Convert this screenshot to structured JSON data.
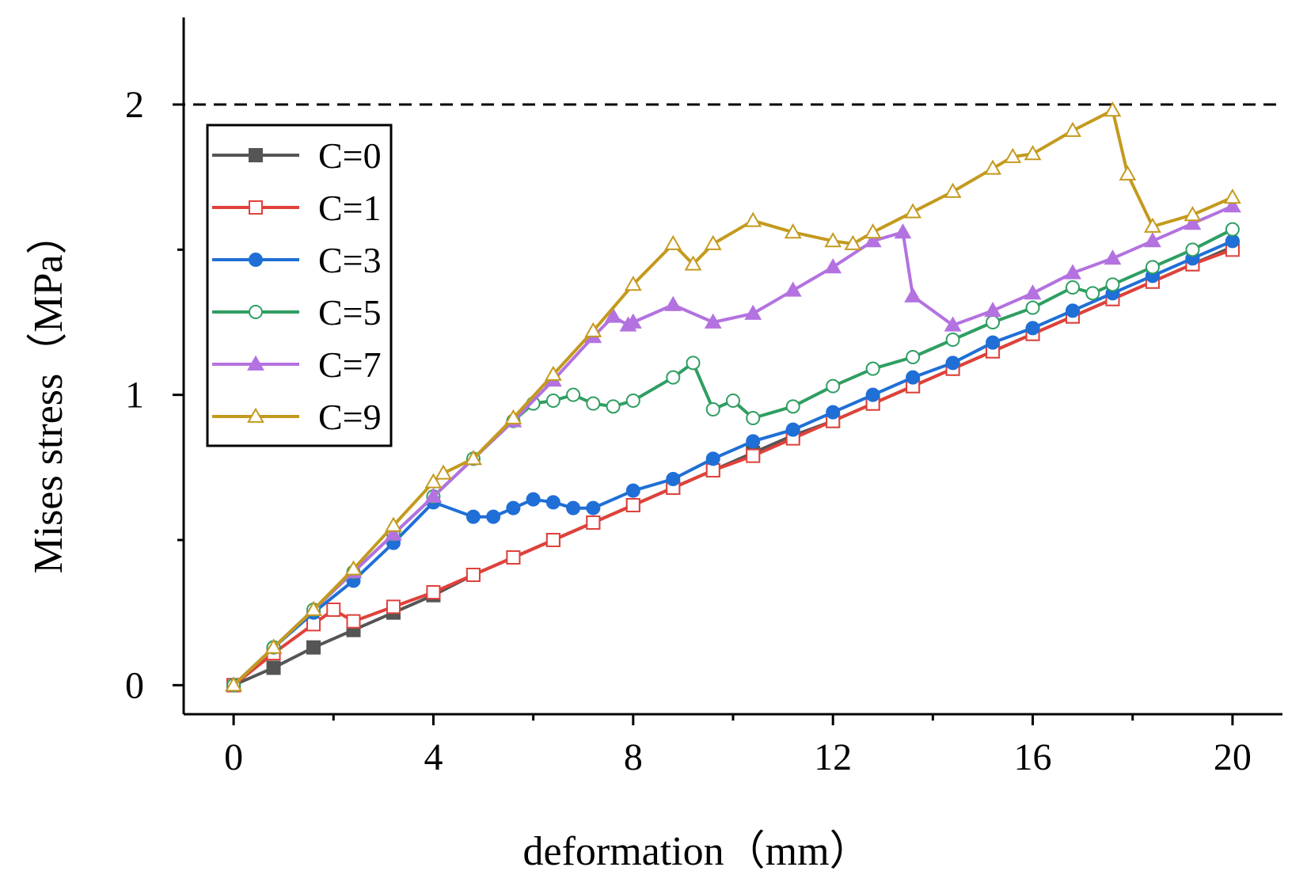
{
  "chart_data": {
    "type": "line",
    "xlabel": "deformation（mm）",
    "ylabel": "Mises stress（MPa）",
    "xlim": [
      -1,
      21
    ],
    "ylim": [
      -0.1,
      2.3
    ],
    "x_ticks": [
      0,
      4,
      8,
      12,
      16,
      20
    ],
    "y_ticks": [
      0,
      1,
      2
    ],
    "x_tick_labels": [
      "0",
      "4",
      "8",
      "12",
      "16",
      "20"
    ],
    "y_tick_labels": [
      "0",
      "1",
      "2"
    ],
    "reference_line": {
      "y": 2,
      "style": "dashed"
    },
    "grid": false,
    "legend_position": "upper-left",
    "series": [
      {
        "name": "C=0",
        "color": "#555555",
        "marker": "square-filled",
        "points": [
          [
            0,
            0
          ],
          [
            0.8,
            0.06
          ],
          [
            1.6,
            0.13
          ],
          [
            2.4,
            0.19
          ],
          [
            3.2,
            0.25
          ],
          [
            4,
            0.31
          ],
          [
            4.8,
            0.38
          ],
          [
            5.6,
            0.44
          ],
          [
            6.4,
            0.5
          ],
          [
            7.2,
            0.56
          ],
          [
            8,
            0.62
          ],
          [
            8.8,
            0.68
          ],
          [
            9.6,
            0.74
          ],
          [
            10.4,
            0.8
          ],
          [
            11.2,
            0.86
          ],
          [
            12,
            0.91
          ],
          [
            12.8,
            0.97
          ],
          [
            13.6,
            1.03
          ],
          [
            14.4,
            1.09
          ],
          [
            15.2,
            1.15
          ],
          [
            16,
            1.21
          ],
          [
            16.8,
            1.27
          ],
          [
            17.6,
            1.33
          ],
          [
            18.4,
            1.39
          ],
          [
            19.2,
            1.45
          ],
          [
            20,
            1.51
          ]
        ]
      },
      {
        "name": "C=1",
        "color": "#e0413a",
        "marker": "square-open",
        "points": [
          [
            0,
            0
          ],
          [
            0.8,
            0.11
          ],
          [
            1.6,
            0.21
          ],
          [
            2,
            0.26
          ],
          [
            2.4,
            0.22
          ],
          [
            3.2,
            0.27
          ],
          [
            4,
            0.32
          ],
          [
            4.8,
            0.38
          ],
          [
            5.6,
            0.44
          ],
          [
            6.4,
            0.5
          ],
          [
            7.2,
            0.56
          ],
          [
            8,
            0.62
          ],
          [
            8.8,
            0.68
          ],
          [
            9.6,
            0.74
          ],
          [
            10.4,
            0.79
          ],
          [
            11.2,
            0.85
          ],
          [
            12,
            0.91
          ],
          [
            12.8,
            0.97
          ],
          [
            13.6,
            1.03
          ],
          [
            14.4,
            1.09
          ],
          [
            15.2,
            1.15
          ],
          [
            16,
            1.21
          ],
          [
            16.8,
            1.27
          ],
          [
            17.6,
            1.33
          ],
          [
            18.4,
            1.39
          ],
          [
            19.2,
            1.45
          ],
          [
            20,
            1.5
          ]
        ]
      },
      {
        "name": "C=3",
        "color": "#1f6fd6",
        "marker": "circle-filled",
        "points": [
          [
            0,
            0
          ],
          [
            0.8,
            0.13
          ],
          [
            1.6,
            0.25
          ],
          [
            2.4,
            0.36
          ],
          [
            3.2,
            0.49
          ],
          [
            4,
            0.63
          ],
          [
            4.8,
            0.58
          ],
          [
            5.2,
            0.58
          ],
          [
            5.6,
            0.61
          ],
          [
            6,
            0.64
          ],
          [
            6.4,
            0.63
          ],
          [
            6.8,
            0.61
          ],
          [
            7.2,
            0.61
          ],
          [
            8,
            0.67
          ],
          [
            8.8,
            0.71
          ],
          [
            9.6,
            0.78
          ],
          [
            10.4,
            0.84
          ],
          [
            11.2,
            0.88
          ],
          [
            12,
            0.94
          ],
          [
            12.8,
            1.0
          ],
          [
            13.6,
            1.06
          ],
          [
            14.4,
            1.11
          ],
          [
            15.2,
            1.18
          ],
          [
            16,
            1.23
          ],
          [
            16.8,
            1.29
          ],
          [
            17.6,
            1.35
          ],
          [
            18.4,
            1.41
          ],
          [
            19.2,
            1.47
          ],
          [
            20,
            1.53
          ]
        ]
      },
      {
        "name": "C=5",
        "color": "#2f9e62",
        "marker": "circle-open",
        "points": [
          [
            0,
            0
          ],
          [
            0.8,
            0.13
          ],
          [
            1.6,
            0.26
          ],
          [
            2.4,
            0.39
          ],
          [
            3.2,
            0.52
          ],
          [
            4,
            0.65
          ],
          [
            4.8,
            0.78
          ],
          [
            5.6,
            0.91
          ],
          [
            6,
            0.97
          ],
          [
            6.4,
            0.98
          ],
          [
            6.8,
            1.0
          ],
          [
            7.2,
            0.97
          ],
          [
            7.6,
            0.96
          ],
          [
            8,
            0.98
          ],
          [
            8.8,
            1.06
          ],
          [
            9.2,
            1.11
          ],
          [
            9.6,
            0.95
          ],
          [
            10,
            0.98
          ],
          [
            10.4,
            0.92
          ],
          [
            11.2,
            0.96
          ],
          [
            12,
            1.03
          ],
          [
            12.8,
            1.09
          ],
          [
            13.6,
            1.13
          ],
          [
            14.4,
            1.19
          ],
          [
            15.2,
            1.25
          ],
          [
            16,
            1.3
          ],
          [
            16.8,
            1.37
          ],
          [
            17.2,
            1.35
          ],
          [
            17.6,
            1.38
          ],
          [
            18.4,
            1.44
          ],
          [
            19.2,
            1.5
          ],
          [
            20,
            1.57
          ]
        ]
      },
      {
        "name": "C=7",
        "color": "#b372e0",
        "marker": "triangle-filled",
        "points": [
          [
            0,
            0
          ],
          [
            0.8,
            0.13
          ],
          [
            1.6,
            0.26
          ],
          [
            2.4,
            0.39
          ],
          [
            3.2,
            0.52
          ],
          [
            4,
            0.65
          ],
          [
            4.8,
            0.78
          ],
          [
            5.6,
            0.91
          ],
          [
            6.4,
            1.05
          ],
          [
            7.2,
            1.2
          ],
          [
            7.6,
            1.27
          ],
          [
            7.9,
            1.24
          ],
          [
            8,
            1.25
          ],
          [
            8.8,
            1.31
          ],
          [
            9.6,
            1.25
          ],
          [
            10.4,
            1.28
          ],
          [
            11.2,
            1.36
          ],
          [
            12,
            1.44
          ],
          [
            12.8,
            1.53
          ],
          [
            13.4,
            1.56
          ],
          [
            13.6,
            1.34
          ],
          [
            14.4,
            1.24
          ],
          [
            15.2,
            1.29
          ],
          [
            16,
            1.35
          ],
          [
            16.8,
            1.42
          ],
          [
            17.6,
            1.47
          ],
          [
            18.4,
            1.53
          ],
          [
            19.2,
            1.59
          ],
          [
            20,
            1.65
          ]
        ]
      },
      {
        "name": "C=9",
        "color": "#c49a1e",
        "marker": "triangle-open",
        "points": [
          [
            0,
            0
          ],
          [
            0.8,
            0.13
          ],
          [
            1.6,
            0.26
          ],
          [
            2.4,
            0.4
          ],
          [
            3.2,
            0.55
          ],
          [
            4,
            0.7
          ],
          [
            4.2,
            0.73
          ],
          [
            4.8,
            0.78
          ],
          [
            5.6,
            0.92
          ],
          [
            6.4,
            1.07
          ],
          [
            7.2,
            1.22
          ],
          [
            8,
            1.38
          ],
          [
            8.8,
            1.52
          ],
          [
            9.2,
            1.45
          ],
          [
            9.6,
            1.52
          ],
          [
            10.4,
            1.6
          ],
          [
            11.2,
            1.56
          ],
          [
            12,
            1.53
          ],
          [
            12.4,
            1.52
          ],
          [
            12.8,
            1.56
          ],
          [
            13.6,
            1.63
          ],
          [
            14.4,
            1.7
          ],
          [
            15.2,
            1.78
          ],
          [
            15.6,
            1.82
          ],
          [
            16,
            1.83
          ],
          [
            16.8,
            1.91
          ],
          [
            17.6,
            1.98
          ],
          [
            17.9,
            1.76
          ],
          [
            18.4,
            1.58
          ],
          [
            19.2,
            1.62
          ],
          [
            20,
            1.68
          ]
        ]
      }
    ]
  }
}
